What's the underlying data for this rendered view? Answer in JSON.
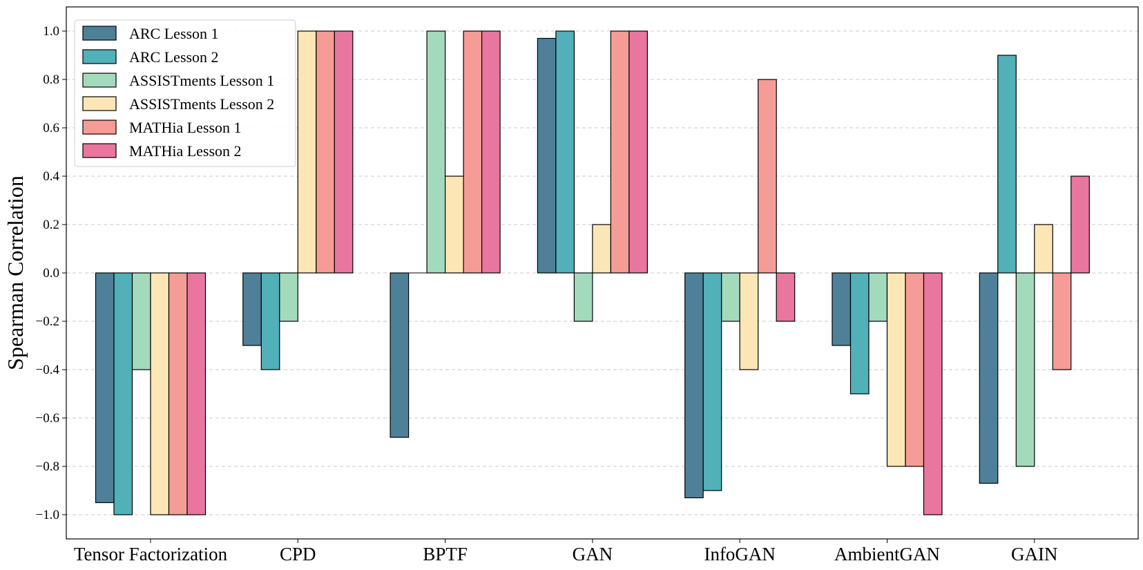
{
  "chart_data": {
    "type": "bar",
    "title": "",
    "xlabel": "",
    "ylabel": "Spearman Correlation",
    "ylim": [
      -1.1,
      1.1
    ],
    "yticks": [
      -1.0,
      -0.8,
      -0.6,
      -0.4,
      -0.2,
      0.0,
      0.2,
      0.4,
      0.6,
      0.8,
      1.0
    ],
    "ytick_labels": [
      "−1.0",
      "−0.8",
      "−0.6",
      "−0.4",
      "−0.2",
      "0.0",
      "0.2",
      "0.4",
      "0.6",
      "0.8",
      "1.0"
    ],
    "grid": "horizontal dashed",
    "legend_position": "top-left",
    "categories": [
      "Tensor Factorization",
      "CPD",
      "BPTF",
      "GAN",
      "InfoGAN",
      "AmbientGAN",
      "GAIN"
    ],
    "series": [
      {
        "name": "ARC Lesson 1",
        "color": "#4e8199",
        "values": [
          -0.95,
          -0.3,
          -0.68,
          0.97,
          -0.93,
          -0.3,
          -0.87
        ]
      },
      {
        "name": "ARC Lesson 2",
        "color": "#52b0b8",
        "values": [
          -1.0,
          -0.4,
          0.0,
          1.0,
          -0.9,
          -0.5,
          0.9
        ]
      },
      {
        "name": "ASSISTments Lesson 1",
        "color": "#a3dabc",
        "values": [
          -0.4,
          -0.2,
          1.0,
          -0.2,
          -0.2,
          -0.2,
          -0.8
        ]
      },
      {
        "name": "ASSISTments Lesson 2",
        "color": "#fde6b6",
        "values": [
          -1.0,
          1.0,
          0.4,
          0.2,
          -0.4,
          -0.8,
          0.2
        ]
      },
      {
        "name": "MATHia Lesson 1",
        "color": "#f59c96",
        "values": [
          -1.0,
          1.0,
          1.0,
          1.0,
          0.8,
          -0.8,
          -0.4
        ]
      },
      {
        "name": "MATHia Lesson 2",
        "color": "#e8769e",
        "values": [
          -1.0,
          1.0,
          1.0,
          1.0,
          -0.2,
          -1.0,
          0.4
        ]
      }
    ]
  }
}
